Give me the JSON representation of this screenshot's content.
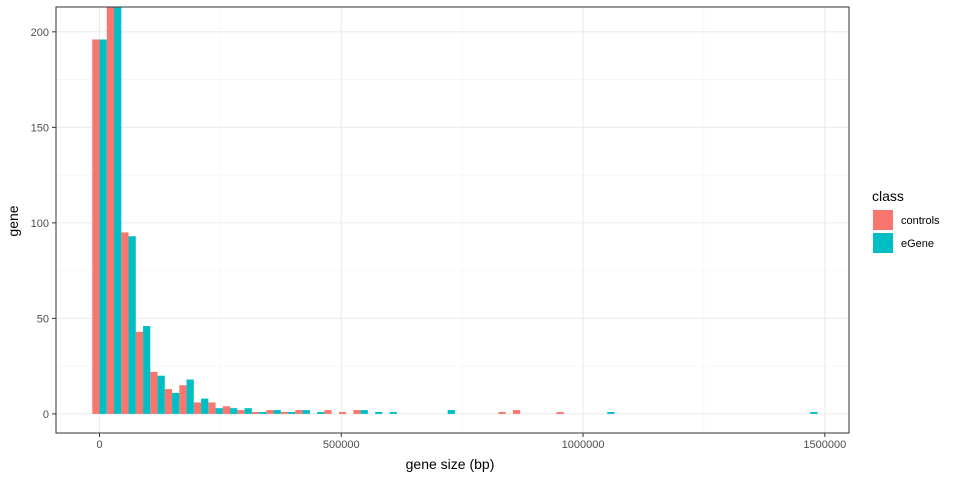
{
  "chart_data": {
    "type": "bar",
    "xlabel": "gene size (bp)",
    "ylabel": "gene",
    "xlim": [
      -90000,
      1550000
    ],
    "ylim": [
      -10,
      213
    ],
    "x_ticks": [
      0,
      500000,
      1000000,
      1500000
    ],
    "x_tick_labels": [
      "0",
      "500000",
      "1000000",
      "1500000"
    ],
    "y_ticks": [
      0,
      50,
      100,
      150,
      200
    ],
    "y_tick_labels": [
      "0",
      "50",
      "100",
      "150",
      "200"
    ],
    "grid": true,
    "legend": {
      "title": "class",
      "placement": "right"
    },
    "bin_width": 30000,
    "series": [
      {
        "name": "controls",
        "color": "#F8766D",
        "points": [
          {
            "x": 0,
            "y": 196
          },
          {
            "x": 30000,
            "y": 213
          },
          {
            "x": 60000,
            "y": 95
          },
          {
            "x": 90000,
            "y": 43
          },
          {
            "x": 120000,
            "y": 22
          },
          {
            "x": 150000,
            "y": 13
          },
          {
            "x": 180000,
            "y": 15
          },
          {
            "x": 210000,
            "y": 6
          },
          {
            "x": 240000,
            "y": 6
          },
          {
            "x": 270000,
            "y": 4
          },
          {
            "x": 300000,
            "y": 2
          },
          {
            "x": 330000,
            "y": 1
          },
          {
            "x": 360000,
            "y": 2
          },
          {
            "x": 390000,
            "y": 1
          },
          {
            "x": 420000,
            "y": 2
          },
          {
            "x": 480000,
            "y": 2
          },
          {
            "x": 510000,
            "y": 1
          },
          {
            "x": 540000,
            "y": 2
          },
          {
            "x": 840000,
            "y": 1
          },
          {
            "x": 870000,
            "y": 2
          },
          {
            "x": 960000,
            "y": 1
          }
        ]
      },
      {
        "name": "eGene",
        "color": "#00BFC4",
        "points": [
          {
            "x": 0,
            "y": 196
          },
          {
            "x": 30000,
            "y": 213
          },
          {
            "x": 60000,
            "y": 93
          },
          {
            "x": 90000,
            "y": 46
          },
          {
            "x": 120000,
            "y": 20
          },
          {
            "x": 150000,
            "y": 11
          },
          {
            "x": 180000,
            "y": 18
          },
          {
            "x": 210000,
            "y": 8
          },
          {
            "x": 240000,
            "y": 3
          },
          {
            "x": 270000,
            "y": 3
          },
          {
            "x": 300000,
            "y": 3
          },
          {
            "x": 330000,
            "y": 1
          },
          {
            "x": 360000,
            "y": 2
          },
          {
            "x": 390000,
            "y": 1
          },
          {
            "x": 420000,
            "y": 2
          },
          {
            "x": 450000,
            "y": 1
          },
          {
            "x": 540000,
            "y": 2
          },
          {
            "x": 570000,
            "y": 1
          },
          {
            "x": 600000,
            "y": 1
          },
          {
            "x": 720000,
            "y": 2
          },
          {
            "x": 1050000,
            "y": 1
          },
          {
            "x": 1470000,
            "y": 1
          }
        ]
      }
    ]
  }
}
